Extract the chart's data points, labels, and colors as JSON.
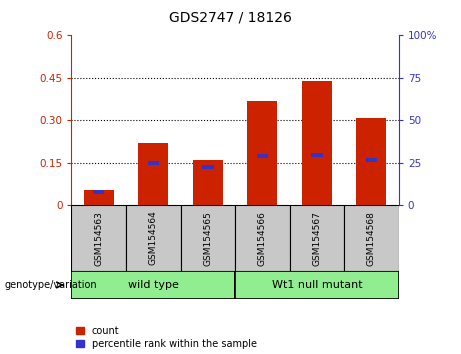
{
  "title": "GDS2747 / 18126",
  "categories": [
    "GSM154563",
    "GSM154564",
    "GSM154565",
    "GSM154566",
    "GSM154567",
    "GSM154568"
  ],
  "red_values": [
    0.055,
    0.22,
    0.16,
    0.37,
    0.44,
    0.31
  ],
  "blue_values": [
    0.048,
    0.15,
    0.135,
    0.175,
    0.178,
    0.16
  ],
  "ylim_left": [
    0,
    0.6
  ],
  "ylim_right": [
    0,
    100
  ],
  "yticks_left": [
    0,
    0.15,
    0.3,
    0.45,
    0.6
  ],
  "yticks_right": [
    0,
    25,
    50,
    75,
    100
  ],
  "ytick_labels_left": [
    "0",
    "0.15",
    "0.30",
    "0.45",
    "0.6"
  ],
  "ytick_labels_right": [
    "0",
    "25",
    "50",
    "75",
    "100%"
  ],
  "groups": [
    {
      "label": "wild type",
      "start": 0,
      "end": 3,
      "color": "#90EE90"
    },
    {
      "label": "Wt1 null mutant",
      "start": 3,
      "end": 6,
      "color": "#90EE90"
    }
  ],
  "group_label_prefix": "genotype/variation",
  "legend_items": [
    {
      "label": "count",
      "color": "#cc2200"
    },
    {
      "label": "percentile rank within the sample",
      "color": "#3333cc"
    }
  ],
  "bar_color": "#cc2200",
  "blue_color": "#3333cc",
  "bg_color": "#c8c8c8",
  "plot_bg": "#ffffff",
  "left_tick_color": "#cc2200",
  "right_tick_color": "#3333cc",
  "grid_linestyle": "dotted",
  "grid_color": "black",
  "grid_linewidth": 0.8
}
